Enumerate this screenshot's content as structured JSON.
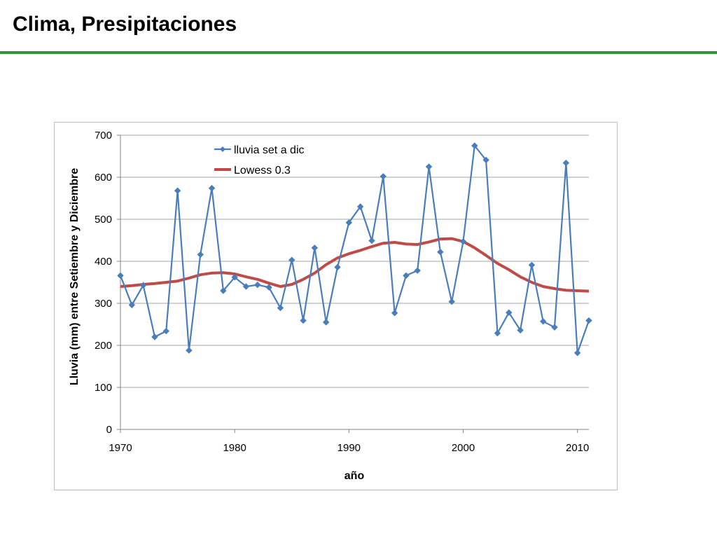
{
  "slide": {
    "title": "Clima, Presipitaciones",
    "accent_color": "#2e9a2e"
  },
  "chart_data": {
    "type": "line",
    "xlabel": "año",
    "ylabel": "Lluvia (mm) entre Setiembre y Diciembre",
    "xlim": [
      1970,
      2011
    ],
    "ylim": [
      0,
      700
    ],
    "xticks": [
      "1970",
      "1980",
      "1990",
      "2000",
      "2010"
    ],
    "yticks": [
      "0",
      "100",
      "200",
      "300",
      "400",
      "500",
      "600",
      "700"
    ],
    "grid": "horizontal",
    "legend_position": "top-left",
    "series": [
      {
        "name": "lluvia set a dic",
        "color": "#4a7ebb",
        "marker": "diamond",
        "x": [
          1970,
          1971,
          1972,
          1973,
          1974,
          1975,
          1976,
          1977,
          1978,
          1979,
          1980,
          1981,
          1982,
          1983,
          1984,
          1985,
          1986,
          1987,
          1988,
          1989,
          1990,
          1991,
          1992,
          1993,
          1994,
          1995,
          1996,
          1997,
          1998,
          1999,
          2000,
          2001,
          2002,
          2003,
          2004,
          2005,
          2006,
          2007,
          2008,
          2009,
          2010,
          2011
        ],
        "y": [
          366,
          296,
          343,
          220,
          234,
          568,
          188,
          416,
          574,
          330,
          362,
          340,
          344,
          338,
          289,
          403,
          259,
          432,
          255,
          386,
          492,
          530,
          449,
          602,
          277,
          366,
          378,
          625,
          422,
          304,
          447,
          675,
          641,
          229,
          278,
          236,
          391,
          257,
          243,
          634,
          182,
          259
        ]
      },
      {
        "name": "Lowess 0.3",
        "color": "#be4b48",
        "marker": "none",
        "x": [
          1970,
          1971,
          1972,
          1973,
          1974,
          1975,
          1976,
          1977,
          1978,
          1979,
          1980,
          1981,
          1982,
          1983,
          1984,
          1985,
          1986,
          1987,
          1988,
          1989,
          1990,
          1991,
          1992,
          1993,
          1994,
          1995,
          1996,
          1997,
          1998,
          1999,
          2000,
          2001,
          2002,
          2003,
          2004,
          2005,
          2006,
          2007,
          2008,
          2009,
          2010,
          2011
        ],
        "y": [
          340,
          342,
          345,
          347,
          350,
          353,
          360,
          368,
          372,
          373,
          370,
          363,
          357,
          348,
          340,
          345,
          357,
          372,
          392,
          408,
          418,
          426,
          435,
          443,
          445,
          441,
          440,
          446,
          453,
          454,
          447,
          432,
          414,
          395,
          380,
          363,
          350,
          340,
          335,
          331,
          330,
          329
        ]
      }
    ]
  }
}
